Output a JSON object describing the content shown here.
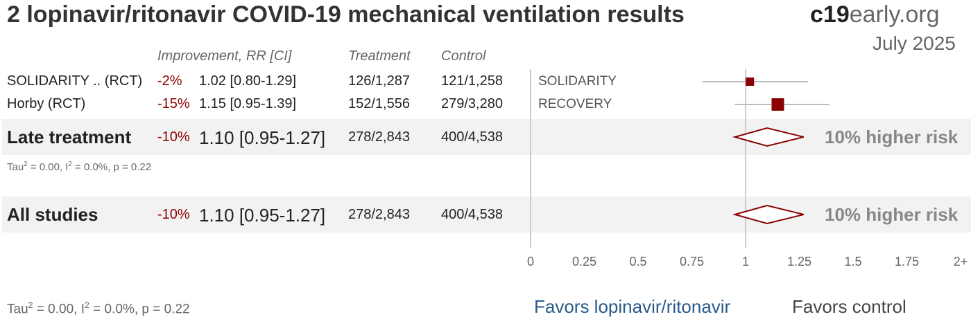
{
  "title": "2 lopinavir/ritonavir COVID-19 mechanical ventilation results",
  "brand": {
    "bold": "c19",
    "regular": "early.org"
  },
  "date": "July 2025",
  "headers": {
    "improvement": "Improvement, RR [CI]",
    "treatment": "Treatment",
    "control": "Control"
  },
  "studies": [
    {
      "name": "SOLIDARITY .. (RCT)",
      "plot_label": "SOLIDARITY",
      "improvement": "-2%",
      "rr_text": "1.02 [0.80-1.29]",
      "treatment": "126/1,287",
      "control": "121/1,258",
      "rr": 1.02,
      "ci_low": 0.8,
      "ci_high": 1.29
    },
    {
      "name": "Horby (RCT)",
      "plot_label": "RECOVERY",
      "improvement": "-15%",
      "rr_text": "1.15 [0.95-1.39]",
      "treatment": "152/1,556",
      "control": "279/3,280",
      "rr": 1.15,
      "ci_low": 0.95,
      "ci_high": 1.39
    }
  ],
  "late": {
    "name": "Late treatment",
    "improvement": "-10%",
    "rr_text": "1.10 [0.95-1.27]",
    "treatment": "278/2,843",
    "control": "400/4,538",
    "risk": "10% higher risk",
    "rr": 1.1,
    "ci_low": 0.95,
    "ci_high": 1.27,
    "stat_tau": "Tau",
    "stat_i": "= 0.00, I",
    "stat_rest": "= 0.0%, p = 0.22"
  },
  "all": {
    "name": "All studies",
    "improvement": "-10%",
    "rr_text": "1.10 [0.95-1.27]",
    "treatment": "278/2,843",
    "control": "400/4,538",
    "risk": "10% higher risk",
    "rr": 1.1,
    "ci_low": 0.95,
    "ci_high": 1.27,
    "stat_tau": "Tau",
    "stat_i": "= 0.00, I",
    "stat_rest": "= 0.0%, p = 0.22"
  },
  "favors": {
    "left": "Favors lopinavir/ritonavir",
    "right": "Favors control"
  },
  "chart_data": {
    "type": "forest",
    "title": "2 lopinavir/ritonavir COVID-19 mechanical ventilation results",
    "x_ticks": [
      "0",
      "0.25",
      "0.5",
      "0.75",
      "1",
      "1.25",
      "1.5",
      "1.75",
      "2+"
    ],
    "xlim": [
      0,
      2
    ],
    "null_value": 1,
    "studies": [
      {
        "label": "SOLIDARITY",
        "rr": 1.02,
        "ci": [
          0.8,
          1.29
        ]
      },
      {
        "label": "RECOVERY",
        "rr": 1.15,
        "ci": [
          0.95,
          1.39
        ]
      }
    ],
    "summaries": [
      {
        "label": "Late treatment",
        "rr": 1.1,
        "ci": [
          0.95,
          1.27
        ]
      },
      {
        "label": "All studies",
        "rr": 1.1,
        "ci": [
          0.95,
          1.27
        ]
      }
    ],
    "colors": {
      "marker": "#8b0000",
      "ci_line": "#bbbbbb",
      "axis": "#cccccc",
      "favor_left": "#2a5a8a"
    }
  }
}
